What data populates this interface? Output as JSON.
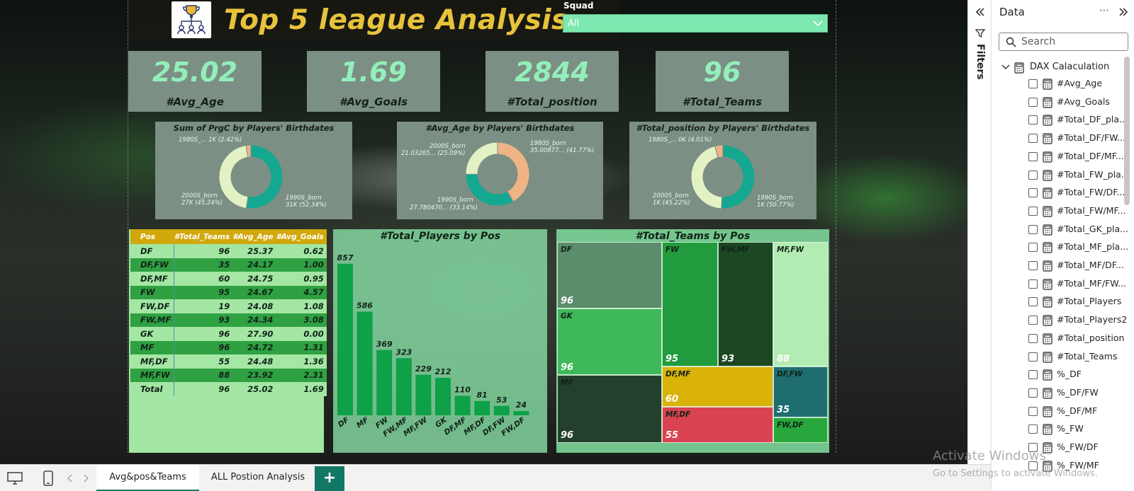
{
  "report": {
    "title": "Top 5 league Analysis"
  },
  "slicer": {
    "label": "Squad",
    "value": "All"
  },
  "kpis": [
    {
      "value": "25.02",
      "label": "#Avg_Age"
    },
    {
      "value": "1.69",
      "label": "#Avg_Goals"
    },
    {
      "value": "2844",
      "label": "#Total_position"
    },
    {
      "value": "96",
      "label": "#Total_Teams"
    }
  ],
  "donuts": [
    {
      "title": "Sum of PrgC by Players' Birthdates",
      "slices": [
        {
          "label": "1990S_born",
          "text": "1990S_born",
          "sub": "31K (52.34%)",
          "pct": 52.34,
          "color": "#14a890"
        },
        {
          "label": "2000S_born",
          "text": "2000S_born",
          "sub": "27K (45.24%)",
          "pct": 45.24,
          "color": "#e2f2c4"
        },
        {
          "label": "1980S_born",
          "text": "1980S_... 1K (2.42%)",
          "sub": "",
          "pct": 2.42,
          "color": "#f0b386"
        }
      ]
    },
    {
      "title": "#Avg_Age by Players' Birthdates",
      "slices": [
        {
          "label": "1980S_born",
          "text": "1980S_born",
          "sub": "35.00877... (41.77%)",
          "pct": 41.77,
          "color": "#f0b386"
        },
        {
          "label": "1990S_born",
          "text": "1990S_born",
          "sub": "27.780470... (33.14%)",
          "pct": 33.14,
          "color": "#14a890"
        },
        {
          "label": "2000S_born",
          "text": "2000S_born",
          "sub": "21.03265... (25.09%)",
          "pct": 25.09,
          "color": "#e2f2c4"
        }
      ]
    },
    {
      "title": "#Total_position by Players' Birthdates",
      "slices": [
        {
          "label": "1990S_born",
          "text": "1990S_born",
          "sub": "1K (50.77%)",
          "pct": 50.77,
          "color": "#14a890"
        },
        {
          "label": "2000S_born",
          "text": "2000S_born",
          "sub": "1K (45.22%)",
          "pct": 45.22,
          "color": "#e2f2c4"
        },
        {
          "label": "1980S_born",
          "text": "1980S_... 0K (4.01%)",
          "sub": "",
          "pct": 4.01,
          "color": "#f0b386"
        }
      ]
    }
  ],
  "table": {
    "headers": [
      "Pos",
      "#Total_Teams",
      "#Avg_Age",
      "#Avg_Goals"
    ],
    "rows": [
      [
        "DF",
        "96",
        "25.37",
        "0.62"
      ],
      [
        "DF,FW",
        "35",
        "24.17",
        "1.00"
      ],
      [
        "DF,MF",
        "60",
        "24.75",
        "0.95"
      ],
      [
        "FW",
        "95",
        "24.67",
        "4.57"
      ],
      [
        "FW,DF",
        "19",
        "24.08",
        "1.08"
      ],
      [
        "FW,MF",
        "93",
        "24.34",
        "3.08"
      ],
      [
        "GK",
        "96",
        "27.90",
        "0.00"
      ],
      [
        "MF",
        "96",
        "24.72",
        "1.31"
      ],
      [
        "MF,DF",
        "55",
        "24.48",
        "1.36"
      ],
      [
        "MF,FW",
        "88",
        "23.92",
        "2.31"
      ]
    ],
    "total": [
      "Total",
      "96",
      "25.02",
      "1.69"
    ]
  },
  "chart_data": [
    {
      "type": "bar",
      "title": "#Total_Players by Pos",
      "categories": [
        "DF",
        "MF",
        "FW",
        "FW,MF",
        "MF,FW",
        "GK",
        "DF,MF",
        "MF,DF",
        "DF,FW",
        "FW,DF"
      ],
      "values": [
        857,
        586,
        369,
        323,
        229,
        212,
        110,
        81,
        53,
        24
      ],
      "ylim": [
        0,
        900
      ],
      "color": "#0ea148"
    },
    {
      "type": "treemap",
      "title": "#Total_Teams by Pos",
      "items": [
        {
          "name": "DF",
          "value": 96,
          "color": "#5b8c6c"
        },
        {
          "name": "GK",
          "value": 96,
          "color": "#3fb85a"
        },
        {
          "name": "MF",
          "value": 96,
          "color": "#22402c"
        },
        {
          "name": "FW",
          "value": 95,
          "color": "#219b3d"
        },
        {
          "name": "FW,MF",
          "value": 93,
          "color": "#1b4722"
        },
        {
          "name": "MF,FW",
          "value": 88,
          "color": "#b2ecb2"
        },
        {
          "name": "DF,MF",
          "value": 60,
          "color": "#dab30a"
        },
        {
          "name": "MF,DF",
          "value": 55,
          "color": "#d94352"
        },
        {
          "name": "DF,FW",
          "value": 35,
          "color": "#1e6e70"
        },
        {
          "name": "FW,DF",
          "value": 19,
          "color": "#28a83c"
        }
      ]
    }
  ],
  "filters_pane": {
    "label": "Filters"
  },
  "data_pane": {
    "title": "Data",
    "search_placeholder": "Search",
    "root": "DAX Calaculation",
    "fields": [
      "#Avg_Age",
      "#Avg_Goals",
      "#Total_DF_pla...",
      "#Total_DF/FW...",
      "#Total_DF/MF...",
      "#Total_FW_pla...",
      "#Total_FW/DF...",
      "#Total_FW/MF...",
      "#Total_GK_pla...",
      "#Total_MF_pla...",
      "#Total_MF/DF...",
      "#Total_MF/FW...",
      "#Total_Players",
      "#Total_Players2",
      "#Total_position",
      "#Total_Teams",
      "%_DF",
      "%_DF/FW",
      "%_DF/MF",
      "%_FW",
      "%_FW/DF",
      "%_FW/MF"
    ]
  },
  "tabs": [
    "Avg&pos&Teams",
    "ALL Postion Analysis"
  ],
  "watermark": {
    "line1": "Activate Windows",
    "line2": "Go to Settings to activate Windows."
  }
}
